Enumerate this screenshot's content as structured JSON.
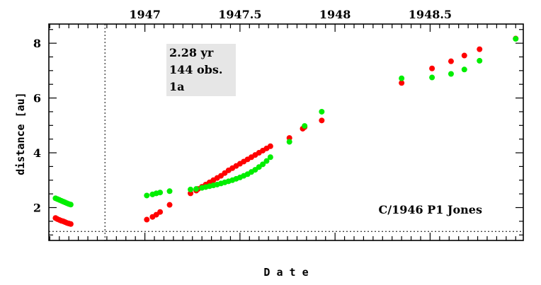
{
  "chart_data": {
    "type": "scatter",
    "title": "",
    "xlabel": "D a t e",
    "ylabel": "distance [au]",
    "xlim": [
      1946.495,
      1948.99
    ],
    "ylim": [
      0.8,
      8.7
    ],
    "x_ticks": [
      {
        "value": 1947.0,
        "label": "1947"
      },
      {
        "value": 1947.5,
        "label": "1947.5"
      },
      {
        "value": 1948.0,
        "label": "1948"
      },
      {
        "value": 1948.5,
        "label": "1948.5"
      }
    ],
    "y_ticks": [
      {
        "value": 2,
        "label": "2"
      },
      {
        "value": 4,
        "label": "4"
      },
      {
        "value": 6,
        "label": "6"
      },
      {
        "value": 8,
        "label": "8"
      }
    ],
    "reference_lines": {
      "vertical_x": 1946.79,
      "horizontal_y": 1.13
    },
    "info_box": {
      "lines": [
        "2.28 yr",
        "144 obs.",
        "1a"
      ]
    },
    "annotation": "C/1946 P1 Jones",
    "series": [
      {
        "color": "#ff0000",
        "points": [
          [
            1946.53,
            1.62
          ],
          [
            1946.54,
            1.58
          ],
          [
            1946.55,
            1.55
          ],
          [
            1946.56,
            1.52
          ],
          [
            1946.57,
            1.5
          ],
          [
            1946.58,
            1.47
          ],
          [
            1946.59,
            1.44
          ],
          [
            1946.6,
            1.42
          ],
          [
            1946.61,
            1.4
          ],
          [
            1947.01,
            1.56
          ],
          [
            1947.04,
            1.66
          ],
          [
            1947.06,
            1.74
          ],
          [
            1947.08,
            1.84
          ],
          [
            1947.13,
            2.1
          ],
          [
            1947.24,
            2.52
          ],
          [
            1947.27,
            2.62
          ],
          [
            1947.28,
            2.68
          ],
          [
            1947.3,
            2.76
          ],
          [
            1947.32,
            2.84
          ],
          [
            1947.34,
            2.92
          ],
          [
            1947.36,
            3.0
          ],
          [
            1947.38,
            3.08
          ],
          [
            1947.4,
            3.16
          ],
          [
            1947.42,
            3.26
          ],
          [
            1947.44,
            3.36
          ],
          [
            1947.46,
            3.44
          ],
          [
            1947.48,
            3.52
          ],
          [
            1947.5,
            3.6
          ],
          [
            1947.52,
            3.68
          ],
          [
            1947.54,
            3.76
          ],
          [
            1947.56,
            3.84
          ],
          [
            1947.58,
            3.92
          ],
          [
            1947.6,
            4.0
          ],
          [
            1947.62,
            4.08
          ],
          [
            1947.64,
            4.16
          ],
          [
            1947.66,
            4.24
          ],
          [
            1947.76,
            4.54
          ],
          [
            1947.83,
            4.88
          ],
          [
            1947.84,
            4.94
          ],
          [
            1947.93,
            5.18
          ],
          [
            1948.35,
            6.55
          ],
          [
            1948.51,
            7.08
          ],
          [
            1948.61,
            7.34
          ],
          [
            1948.68,
            7.55
          ],
          [
            1948.76,
            7.78
          ],
          [
            1948.95,
            8.17
          ]
        ]
      },
      {
        "color": "#00ee00",
        "points": [
          [
            1946.53,
            2.34
          ],
          [
            1946.54,
            2.31
          ],
          [
            1946.55,
            2.28
          ],
          [
            1946.56,
            2.25
          ],
          [
            1946.57,
            2.22
          ],
          [
            1946.58,
            2.19
          ],
          [
            1946.59,
            2.16
          ],
          [
            1946.6,
            2.13
          ],
          [
            1946.61,
            2.11
          ],
          [
            1947.01,
            2.44
          ],
          [
            1947.04,
            2.48
          ],
          [
            1947.06,
            2.52
          ],
          [
            1947.08,
            2.55
          ],
          [
            1947.13,
            2.6
          ],
          [
            1947.24,
            2.66
          ],
          [
            1947.27,
            2.68
          ],
          [
            1947.3,
            2.72
          ],
          [
            1947.32,
            2.75
          ],
          [
            1947.34,
            2.78
          ],
          [
            1947.36,
            2.81
          ],
          [
            1947.38,
            2.84
          ],
          [
            1947.4,
            2.88
          ],
          [
            1947.42,
            2.92
          ],
          [
            1947.44,
            2.96
          ],
          [
            1947.46,
            3.0
          ],
          [
            1947.48,
            3.05
          ],
          [
            1947.5,
            3.1
          ],
          [
            1947.52,
            3.16
          ],
          [
            1947.54,
            3.22
          ],
          [
            1947.56,
            3.3
          ],
          [
            1947.58,
            3.38
          ],
          [
            1947.6,
            3.48
          ],
          [
            1947.62,
            3.58
          ],
          [
            1947.64,
            3.7
          ],
          [
            1947.66,
            3.84
          ],
          [
            1947.76,
            4.4
          ],
          [
            1947.84,
            4.98
          ],
          [
            1947.93,
            5.5
          ],
          [
            1948.35,
            6.72
          ],
          [
            1948.51,
            6.75
          ],
          [
            1948.61,
            6.88
          ],
          [
            1948.68,
            7.04
          ],
          [
            1948.76,
            7.36
          ],
          [
            1948.95,
            8.16
          ]
        ]
      }
    ]
  }
}
